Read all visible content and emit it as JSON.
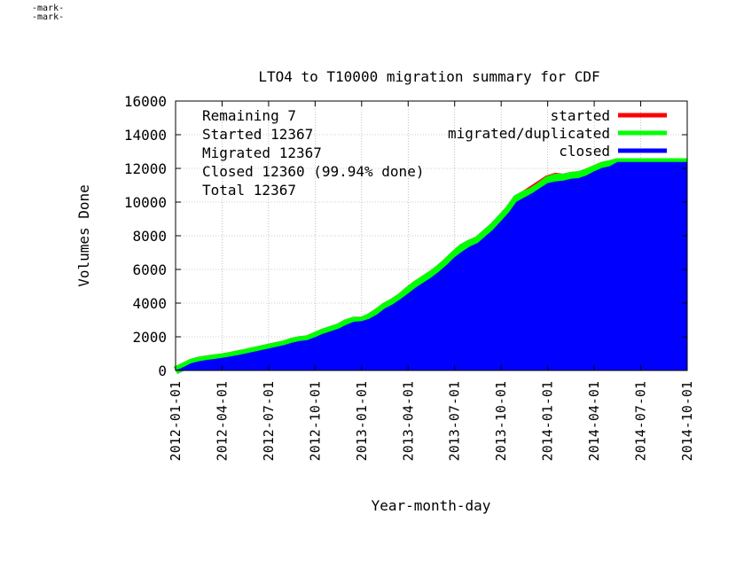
{
  "header_marks": [
    "-mark-",
    "-mark-"
  ],
  "chart_data": {
    "type": "area",
    "title": "LTO4 to T10000 migration summary for CDF",
    "xlabel": "Year-month-day",
    "ylabel": "Volumes Done",
    "ylim": [
      0,
      16000
    ],
    "yticks": [
      0,
      2000,
      4000,
      6000,
      8000,
      10000,
      12000,
      14000,
      16000
    ],
    "xlim": [
      "2012-01-01",
      "2014-10-01"
    ],
    "xticks": [
      "2012-01-01",
      "2012-04-01",
      "2012-07-01",
      "2012-10-01",
      "2013-01-01",
      "2013-04-01",
      "2013-07-01",
      "2013-10-01",
      "2014-01-01",
      "2014-04-01",
      "2014-07-01",
      "2014-10-01"
    ],
    "grid": true,
    "legend_position": "top-right",
    "legend": [
      "started",
      "migrated/duplicated",
      "closed"
    ],
    "colors": {
      "started": "#ff0000",
      "migrated": "#00ff00",
      "closed": "#0000ff"
    },
    "summary_lines": [
      "Remaining 7",
      "Started 12367",
      "Migrated 12367",
      "Closed 12360 (99.94% done)",
      "Total 12367"
    ],
    "x": [
      0,
      0.33,
      0.67,
      1.0,
      1.5,
      2.0,
      2.5,
      3.0,
      3.5,
      4.0,
      4.5,
      5.0,
      5.5,
      6.0,
      6.5,
      7.0,
      7.5,
      8.0,
      8.5,
      9.0,
      9.5,
      10.0,
      10.5,
      11.0,
      11.5,
      12.0,
      12.5,
      13.0,
      13.5,
      14.0,
      14.5,
      15.0,
      15.5,
      16.0,
      16.5,
      17.0,
      17.5,
      18.0,
      18.5,
      19.0,
      19.5,
      20.0,
      20.5,
      21.0,
      21.5,
      22.0,
      22.5,
      23.0,
      23.5,
      24.0,
      24.5,
      25.0,
      25.5,
      26.0,
      26.5,
      27.0,
      27.5,
      28.0,
      28.5,
      29.0,
      29.5,
      30.0,
      30.5,
      31.0,
      32.0,
      33.0
    ],
    "x_unit": "months since 2012-01-01",
    "series": [
      {
        "name": "started",
        "values": [
          0,
          150,
          300,
          450,
          580,
          650,
          720,
          780,
          860,
          950,
          1050,
          1150,
          1250,
          1350,
          1450,
          1550,
          1700,
          1800,
          1850,
          2050,
          2250,
          2400,
          2550,
          2800,
          2950,
          2950,
          3150,
          3450,
          3800,
          4050,
          4350,
          4750,
          5100,
          5400,
          5700,
          6050,
          6450,
          6900,
          7300,
          7550,
          7750,
          8150,
          8550,
          9050,
          9550,
          10200,
          10450,
          10750,
          11050,
          11350,
          11500,
          11450,
          11550,
          11600,
          11750,
          11950,
          12150,
          12250,
          12367,
          12367,
          12367,
          12367,
          12367,
          12367,
          12367,
          12367
        ]
      },
      {
        "name": "migrated/duplicated",
        "values": [
          0,
          150,
          300,
          450,
          580,
          650,
          720,
          780,
          860,
          950,
          1050,
          1150,
          1250,
          1350,
          1450,
          1550,
          1700,
          1800,
          1850,
          2050,
          2250,
          2400,
          2550,
          2800,
          2950,
          2950,
          3150,
          3450,
          3800,
          4050,
          4350,
          4750,
          5100,
          5400,
          5700,
          6050,
          6450,
          6900,
          7300,
          7550,
          7750,
          8150,
          8550,
          9050,
          9550,
          10200,
          10450,
          10650,
          10950,
          11300,
          11450,
          11450,
          11550,
          11600,
          11750,
          11950,
          12150,
          12250,
          12367,
          12367,
          12367,
          12367,
          12367,
          12367,
          12367,
          12367
        ]
      },
      {
        "name": "closed",
        "values": [
          0,
          100,
          250,
          400,
          520,
          600,
          660,
          720,
          800,
          880,
          980,
          1080,
          1180,
          1280,
          1380,
          1480,
          1620,
          1720,
          1780,
          1950,
          2150,
          2300,
          2450,
          2680,
          2870,
          2900,
          3050,
          3300,
          3650,
          3900,
          4200,
          4550,
          4900,
          5200,
          5500,
          5850,
          6250,
          6700,
          7050,
          7350,
          7550,
          7950,
          8350,
          8850,
          9350,
          10000,
          10250,
          10500,
          10800,
          11100,
          11200,
          11250,
          11350,
          11400,
          11550,
          11800,
          12000,
          12100,
          12360,
          12360,
          12360,
          12360,
          12360,
          12360,
          12360,
          12360
        ]
      }
    ]
  }
}
